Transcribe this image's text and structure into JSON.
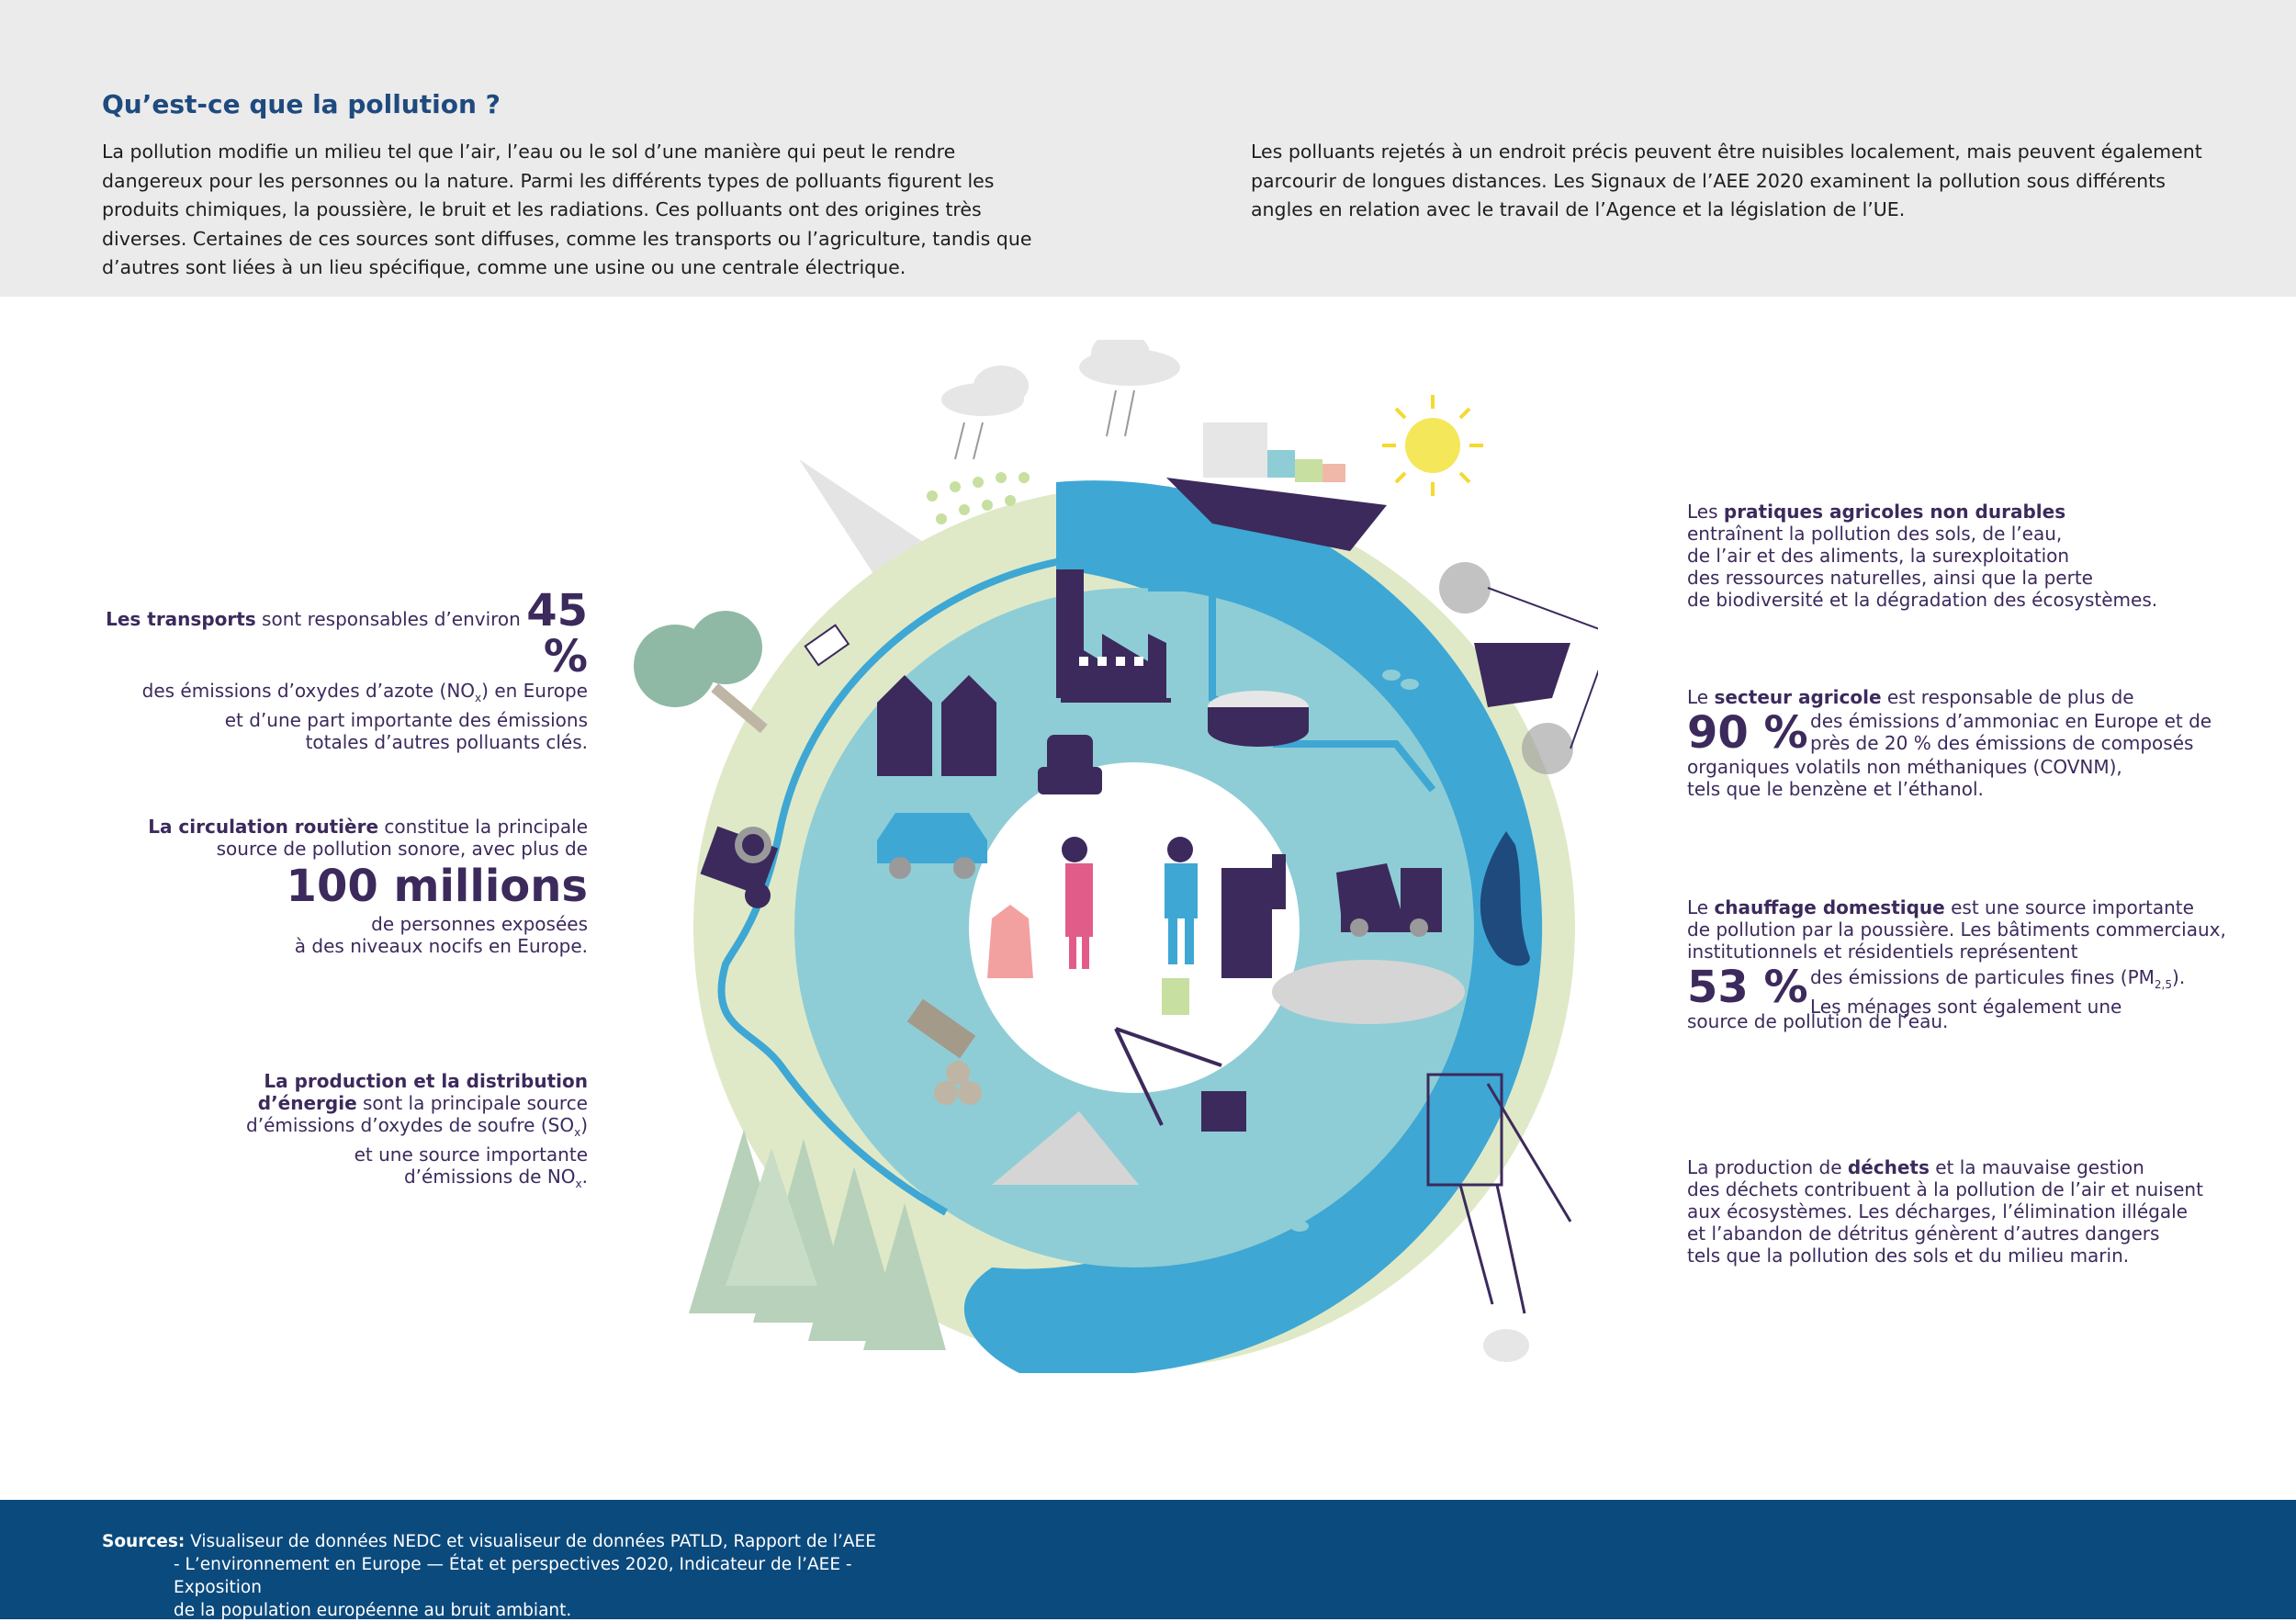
{
  "header": {
    "title": "Qu’est-ce que la pollution ?",
    "para_left": "La pollution modifie un milieu tel que l’air, l’eau ou le sol d’une manière qui peut le rendre dangereux pour les personnes ou la nature. Parmi les différents types de polluants figurent les produits chimiques, la poussière, le bruit et les radiations. Ces polluants ont des origines très diverses. Certaines de ces sources sont diffuses, comme les transports ou l’agriculture, tandis que d’autres sont liées à un lieu spécifique, comme une usine ou une centrale électrique.",
    "para_right": "Les polluants rejetés à un endroit précis peuvent être nuisibles localement, mais peuvent également parcourir de longues distances. Les Signaux de l’AEE 2020 examinent la pollution sous différents angles en relation avec le travail de l’Agence et la législation de l’UE."
  },
  "left_facts": {
    "transport": {
      "bold": "Les transports",
      "pre": " sont responsables d’environ ",
      "value": "45 %",
      "line2a": "des émissions d’oxydes d’azote (NO",
      "sub": "x",
      "line2b": ") en Europe",
      "line3": "et d’une part importante des émissions",
      "line4": "totales d’autres polluants clés."
    },
    "road": {
      "bold": "La circulation routière",
      "line1": " constitue la principale",
      "line2": "source de pollution sonore, avec plus de",
      "value": "100 millions",
      "line3": "de personnes exposées",
      "line4": "à des niveaux nocifs en Europe."
    },
    "energy": {
      "bold1": "La production et la distribution",
      "bold2": "d’énergie",
      "line2": " sont la principale source",
      "line3a": "d’émissions d’oxydes de soufre (SO",
      "sub3": "x",
      "line3b": ")",
      "line4": "et une source importante",
      "line5a": "d’émissions de NO",
      "sub5": "x",
      "line5b": "."
    }
  },
  "right_facts": {
    "agri_practices": {
      "pre": "Les ",
      "bold": "pratiques agricoles non durables",
      "line2": "entraînent la pollution des sols, de l’eau,",
      "line3": "de l’air et des aliments, la surexploitation",
      "line4": "des ressources naturelles, ainsi que la perte",
      "line5": "de biodiversité et la dégradation des écosystèmes."
    },
    "agri_sector": {
      "pre": "Le ",
      "bold": "secteur agricole",
      "line1": " est responsable de plus de",
      "value": "90 %",
      "side1": "des émissions d’ammoniac en Europe et de",
      "side2": "près de 20 % des émissions de composés",
      "line3": "organiques volatils non méthaniques (COVNM),",
      "line4": "tels que le benzène et l’éthanol."
    },
    "heating": {
      "pre": "Le ",
      "bold": "chauffage domestique",
      "line1": " est une source importante",
      "line2": "de pollution par la poussière. Les bâtiments commerciaux,",
      "line3": "institutionnels et résidentiels représentent",
      "value": "53 %",
      "side1a": "des émissions de particules fines (PM",
      "side1sub": "2,5",
      "side1b": ").",
      "side2": "Les ménages sont également une",
      "line4": "source de pollution de l’eau."
    },
    "waste": {
      "pre": "La production de ",
      "bold": "déchets",
      "line1": " et la mauvaise gestion",
      "line2": "des déchets contribuent à la pollution de l’air et nuisent",
      "line3": "aux écosystèmes. Les décharges, l’élimination illégale",
      "line4": "et l’abandon de détritus génèrent d’autres dangers",
      "line5": "tels que la pollution des sols et du milieu marin."
    }
  },
  "footer": {
    "label": "Sources:",
    "line1": " Visualiseur de données NEDC et visualiseur de données PATLD, Rapport de l’AEE",
    "line2": "- L’environnement en Europe — État et perspectives 2020, Indicateur de l’AEE - Exposition",
    "line3": "de la population européenne au bruit ambiant."
  },
  "colors": {
    "header_bg": "#ebebeb",
    "title": "#1e4a7e",
    "fact_text": "#3c2a5c",
    "footer_bg": "#0b4a7d",
    "ring_land": "#dfe9c8",
    "ring_water": "#3ea7d4",
    "ring_inner": "#8ecdd6",
    "purple": "#3c2a5c"
  },
  "icons": [
    "factory-icon",
    "house-icon",
    "car-icon",
    "truck-icon",
    "tractor-icon",
    "tree-icon",
    "cow-icon",
    "ship-icon",
    "sun-icon",
    "cloud-icon",
    "fish-icon",
    "whale-icon",
    "oil-rig-icon",
    "crane-icon",
    "person-icon",
    "armchair-icon",
    "water-treatment-icon",
    "logs-icon"
  ]
}
